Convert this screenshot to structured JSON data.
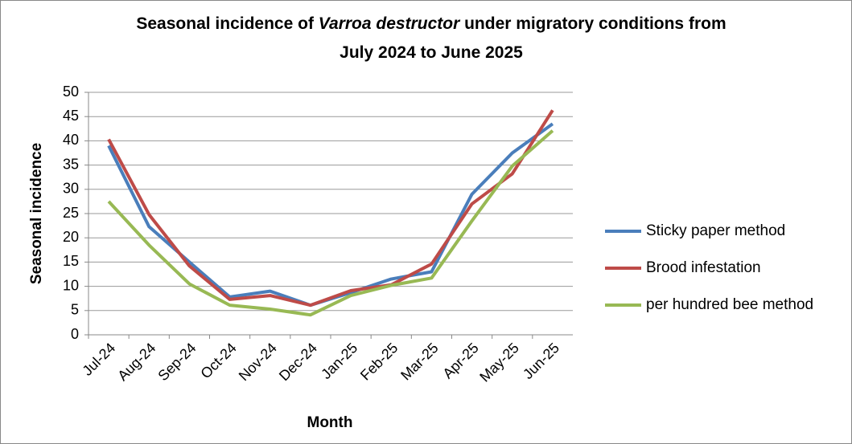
{
  "chart_data": {
    "type": "line",
    "title": [
      "Seasonal incidence of",
      "Varroa destructor",
      "under migratory conditions from",
      "July 2024 to June 2025"
    ],
    "x_label": "Month",
    "y_label": "Seasonal incidence",
    "categories": [
      "Jul-24",
      "Aug-24",
      "Sep-24",
      "Oct-24",
      "Nov-24",
      "Dec-24",
      "Jan-25",
      "Feb-25",
      "Mar-25",
      "Apr-25",
      "May-25",
      "Jun-25"
    ],
    "series": [
      {
        "name": "Sticky paper method",
        "color": "#4a7ebb",
        "values": [
          39,
          22.3,
          15,
          7.8,
          9,
          6.1,
          8.7,
          11.5,
          13,
          29,
          37.5,
          43.5
        ]
      },
      {
        "name": "Brood infestation",
        "color": "#be4b48",
        "values": [
          40.3,
          24.8,
          14.2,
          7.3,
          8.1,
          6.1,
          9.1,
          10.3,
          14.6,
          27,
          33.2,
          46.3
        ]
      },
      {
        "name": "per hundred bee method",
        "color": "#98b954",
        "values": [
          27.5,
          18.5,
          10.5,
          6.1,
          5.3,
          4.1,
          8.1,
          10.2,
          11.7,
          23.5,
          34.8,
          42.1
        ]
      }
    ],
    "ylim": [
      0,
      50
    ],
    "yticks": [
      0,
      5,
      10,
      15,
      20,
      25,
      30,
      35,
      40,
      45,
      50
    ],
    "grid": true,
    "legend": "right"
  }
}
